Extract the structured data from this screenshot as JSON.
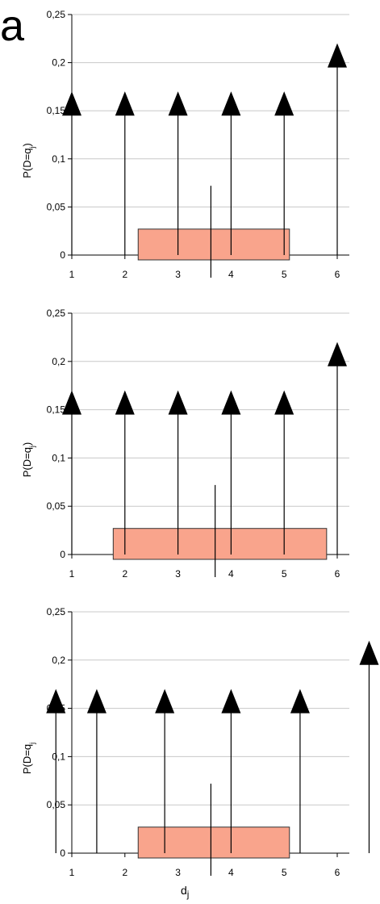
{
  "corner_label": "a",
  "colors": {
    "grid": "#c8c8c8",
    "axis": "#000000",
    "box_fill": "#f9a48c",
    "box_stroke": "#333333",
    "arrow": "#000000"
  },
  "chart_data": [
    {
      "type": "scatter",
      "title": "",
      "xlabel": "",
      "ylabel": "P(D=q_j)",
      "ylabel_text": "P(D=q",
      "ylabel_sub": "j",
      "ylabel_close": ")",
      "xlim": [
        1,
        6
      ],
      "ylim": [
        0,
        0.25
      ],
      "grid": true,
      "x_ticks": [
        "1",
        "2",
        "3",
        "4",
        "5",
        "6"
      ],
      "y_ticks": [
        "0",
        "0,05",
        "0,1",
        "0,15",
        "0,2",
        "0,25"
      ],
      "arrows": [
        {
          "x": 1.0,
          "height": 0.15
        },
        {
          "x": 2.0,
          "height": 0.15
        },
        {
          "x": 3.0,
          "height": 0.15
        },
        {
          "x": 4.0,
          "height": 0.15
        },
        {
          "x": 5.0,
          "height": 0.15
        },
        {
          "x": 6.0,
          "height": 0.2
        }
      ],
      "box": {
        "x_start": 2.25,
        "x_end": 5.1,
        "height": 0.027
      },
      "marker": {
        "x": 3.62,
        "height": 0.072
      }
    },
    {
      "type": "scatter",
      "title": "",
      "xlabel": "",
      "ylabel": "P(D=q_j)",
      "ylabel_text": "P(D=q",
      "ylabel_sub": "j",
      "ylabel_close": ")",
      "xlim": [
        1,
        6
      ],
      "ylim": [
        0,
        0.25
      ],
      "grid": true,
      "x_ticks": [
        "1",
        "2",
        "3",
        "4",
        "5",
        "6"
      ],
      "y_ticks": [
        "0",
        "0,05",
        "0,1",
        "0,15",
        "0,2",
        "0,25"
      ],
      "arrows": [
        {
          "x": 1.0,
          "height": 0.15
        },
        {
          "x": 2.0,
          "height": 0.15
        },
        {
          "x": 3.0,
          "height": 0.15
        },
        {
          "x": 4.0,
          "height": 0.15
        },
        {
          "x": 5.0,
          "height": 0.15
        },
        {
          "x": 6.0,
          "height": 0.2
        }
      ],
      "box": {
        "x_start": 1.78,
        "x_end": 5.8,
        "height": 0.027
      },
      "marker": {
        "x": 3.7,
        "height": 0.072
      }
    },
    {
      "type": "scatter",
      "title": "",
      "xlabel": "d_j",
      "xlabel_text": "d",
      "xlabel_sub": "j",
      "ylabel": "P(D=q_j)",
      "ylabel_text": "P(D=q",
      "ylabel_sub": "j",
      "ylabel_close": "",
      "xlim": [
        1,
        6
      ],
      "ylim": [
        0,
        0.25
      ],
      "grid": true,
      "x_ticks": [
        "1",
        "2",
        "3",
        "4",
        "5",
        "6"
      ],
      "y_ticks": [
        "0",
        "0,05",
        "0,1",
        "0,15",
        "0,2",
        "0,25"
      ],
      "arrows": [
        {
          "x": 0.7,
          "height": 0.15
        },
        {
          "x": 1.47,
          "height": 0.15
        },
        {
          "x": 2.75,
          "height": 0.15
        },
        {
          "x": 4.0,
          "height": 0.15
        },
        {
          "x": 5.3,
          "height": 0.15
        },
        {
          "x": 6.6,
          "height": 0.2
        }
      ],
      "box": {
        "x_start": 2.25,
        "x_end": 5.1,
        "height": 0.027
      },
      "marker": {
        "x": 3.62,
        "height": 0.072
      }
    }
  ]
}
